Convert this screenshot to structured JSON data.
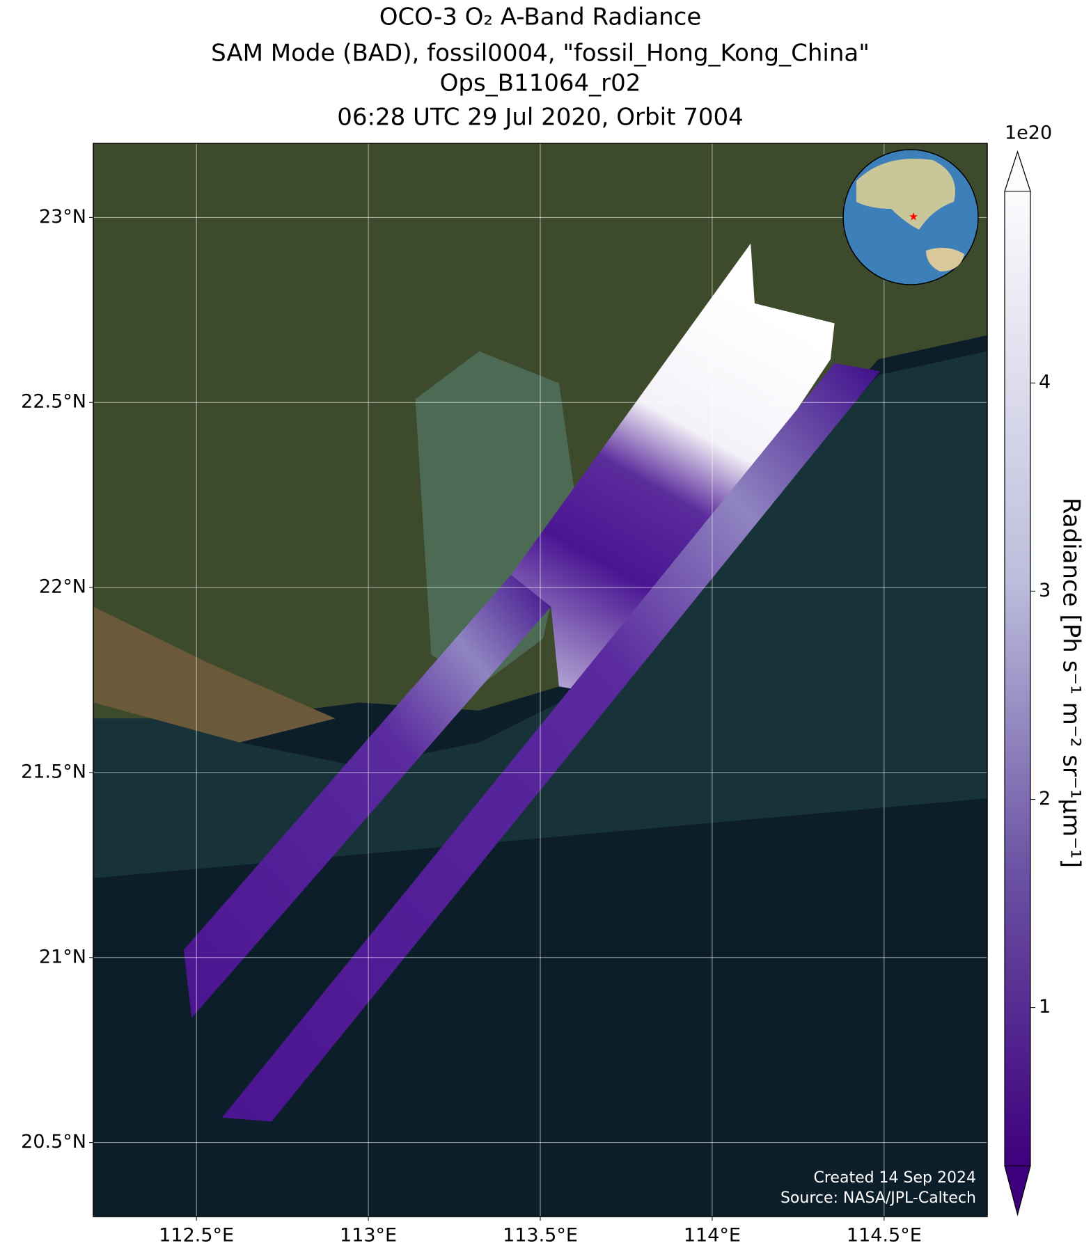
{
  "title": [
    "OCO-3 O₂ A-Band Radiance",
    "SAM Mode (BAD), fossil0004, \"fossil_Hong_Kong_China\"",
    "Ops_B11064_r02",
    "06:28 UTC 29 Jul 2020, Orbit 7004"
  ],
  "map": {
    "xlim": [
      112.2,
      114.8
    ],
    "ylim": [
      20.3,
      23.2
    ],
    "xticks": [
      {
        "value": 112.5,
        "label": "112.5°E"
      },
      {
        "value": 113,
        "label": "113°E"
      },
      {
        "value": 113.5,
        "label": "113.5°E"
      },
      {
        "value": 114,
        "label": "114°E"
      },
      {
        "value": 114.5,
        "label": "114.5°E"
      }
    ],
    "yticks": [
      {
        "value": 20.5,
        "label": "20.5°N"
      },
      {
        "value": 21,
        "label": "21°N"
      },
      {
        "value": 21.5,
        "label": "21.5°N"
      },
      {
        "value": 22,
        "label": "22°N"
      },
      {
        "value": 22.5,
        "label": "22.5°N"
      },
      {
        "value": 23,
        "label": "23°N"
      }
    ],
    "grid": true,
    "marker": {
      "lon": 114.13,
      "lat": 22.36,
      "color": "#ff0000"
    }
  },
  "colorbar": {
    "label": "Radiance [Ph s⁻¹ m⁻² sr⁻¹μm⁻¹]",
    "multiplier": "1e20",
    "lim": [
      0.24,
      4.92
    ],
    "ticks": [
      1,
      2,
      3,
      4
    ],
    "colors": [
      "#3f007d",
      "#fcfbfd"
    ]
  },
  "credits": [
    "Created 14 Sep 2024",
    "Source: NASA/JPL-Caltech"
  ]
}
